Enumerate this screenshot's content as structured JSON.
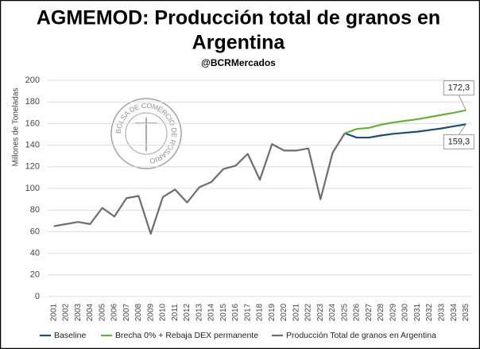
{
  "chart_data": {
    "type": "line",
    "title": "AGMEMOD: Producción total de granos en Argentina",
    "title_lines": [
      "AGMEMOD: Producción total de granos en",
      "Argentina"
    ],
    "subtitle": "@BCRMercados",
    "ylabel": "Millones de Toneladas",
    "logo_text": "BOLSA DE COMERCIO DE ROSARIO",
    "categories": [
      "2001",
      "2002",
      "2003",
      "2004",
      "2005",
      "2006",
      "2007",
      "2008",
      "2009",
      "2010",
      "2011",
      "2012",
      "2013",
      "2014",
      "2015",
      "2016",
      "2017",
      "2018",
      "2019",
      "2020",
      "2021",
      "2022",
      "2023",
      "2024",
      "2025",
      "2026",
      "2027",
      "2028",
      "2029",
      "2030",
      "2031",
      "2032",
      "2033",
      "2034",
      "2035"
    ],
    "ylim": [
      0,
      200
    ],
    "yticks": [
      0,
      20,
      40,
      60,
      80,
      100,
      120,
      140,
      160,
      180,
      200
    ],
    "grid": true,
    "legend": "bottom",
    "series": [
      {
        "name": "Baseline",
        "color": "#1f4e6e",
        "values": [
          null,
          null,
          null,
          null,
          null,
          null,
          null,
          null,
          null,
          null,
          null,
          null,
          null,
          null,
          null,
          null,
          null,
          null,
          null,
          null,
          null,
          null,
          null,
          null,
          151,
          147,
          147,
          149,
          150.5,
          151.5,
          152.5,
          154,
          155.5,
          157.5,
          159.3
        ],
        "value_labels": [
          null,
          null,
          null,
          null,
          null,
          null,
          null,
          null,
          null,
          null,
          null,
          null,
          null,
          null,
          null,
          null,
          null,
          null,
          null,
          null,
          null,
          null,
          null,
          null,
          null,
          null,
          null,
          null,
          null,
          null,
          null,
          null,
          null,
          null,
          "159,3"
        ]
      },
      {
        "name": "Brecha 0% + Rebaja DEX permanente",
        "color": "#6aaf3d",
        "values": [
          null,
          null,
          null,
          null,
          null,
          null,
          null,
          null,
          null,
          null,
          null,
          null,
          null,
          null,
          null,
          null,
          null,
          null,
          null,
          null,
          null,
          null,
          null,
          null,
          151,
          155,
          156,
          159,
          161,
          162.5,
          164,
          166,
          168,
          170,
          172.3
        ],
        "value_labels": [
          null,
          null,
          null,
          null,
          null,
          null,
          null,
          null,
          null,
          null,
          null,
          null,
          null,
          null,
          null,
          null,
          null,
          null,
          null,
          null,
          null,
          null,
          null,
          null,
          null,
          null,
          null,
          null,
          null,
          null,
          null,
          null,
          null,
          null,
          "172,3"
        ]
      },
      {
        "name": "Producción Total de granos en Argentina",
        "color": "#6e6e6e",
        "values": [
          65,
          67,
          69,
          67,
          82,
          74,
          91,
          93,
          58,
          92,
          99,
          87,
          101,
          106,
          118,
          121,
          132,
          108,
          141,
          135,
          135,
          137,
          90,
          133,
          151,
          null,
          null,
          null,
          null,
          null,
          null,
          null,
          null,
          null,
          null
        ]
      }
    ]
  }
}
